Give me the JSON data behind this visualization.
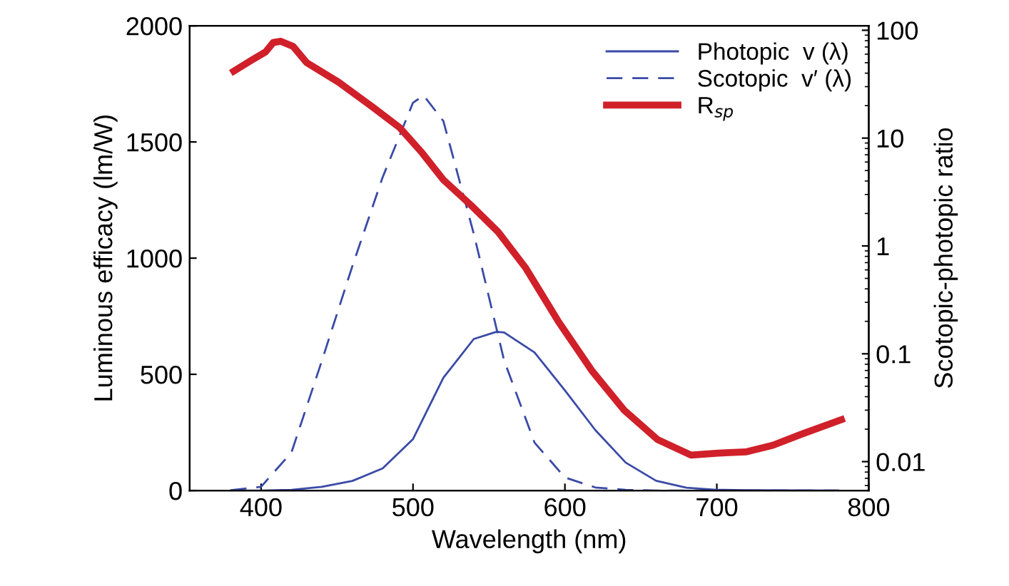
{
  "chart_data": {
    "type": "line",
    "xlabel": "Wavelength (nm)",
    "ylabel": "Luminous efficacy (lm/W)",
    "y2label": "Scotopic-photopic ratio",
    "xlim": [
      353,
      800
    ],
    "xticks": [
      400,
      500,
      600,
      700,
      800
    ],
    "ylim": [
      0,
      2000
    ],
    "yticks": [
      0,
      500,
      1000,
      1500,
      2000
    ],
    "log": "y2",
    "y2lim": [
      0.0054,
      110
    ],
    "y2ticks": [
      0.01,
      0.1,
      1,
      10,
      100
    ],
    "grid": false,
    "legend": "top right",
    "marker": "none",
    "series": [
      {
        "name": "Photopic  v (λ)",
        "color": "#3a4aa6",
        "line_style": "solid",
        "x": [
          380,
          400,
          420,
          440,
          460,
          480,
          500,
          520,
          540,
          555,
          560,
          580,
          600,
          620,
          640,
          660,
          680,
          700,
          720,
          780
        ],
        "values": [
          0,
          0,
          3,
          16,
          41,
          95,
          221,
          485,
          652,
          683,
          680,
          594,
          431,
          260,
          120,
          42,
          12,
          3,
          1,
          0
        ]
      },
      {
        "name": "Scotopic  v′ (λ)",
        "color": "#3a4aa6",
        "line_style": "dashed",
        "x": [
          380,
          400,
          420,
          440,
          460,
          480,
          500,
          507,
          520,
          540,
          560,
          580,
          600,
          620,
          640,
          660,
          700,
          780
        ],
        "values": [
          1,
          16,
          164,
          558,
          964,
          1348,
          1669,
          1700,
          1590,
          1105,
          559,
          206,
          56,
          13,
          3,
          0,
          0,
          0
        ]
      },
      {
        "name": "R$_{sp}$",
        "color": "#d0202a",
        "line_style": "solid",
        "axis": "y2",
        "x": [
          382,
          393,
          403,
          408,
          413,
          421,
          430,
          451,
          473,
          491,
          506,
          520,
          538,
          556,
          574,
          596,
          618,
          639,
          661,
          683,
          701,
          719,
          737,
          755,
          782
        ],
        "values": [
          41.7,
          52,
          63,
          77,
          79,
          71,
          50,
          33,
          19.6,
          12.6,
          7.3,
          4.1,
          2.4,
          1.35,
          0.63,
          0.196,
          0.069,
          0.03,
          0.016,
          0.0115,
          0.012,
          0.0123,
          0.0142,
          0.0178,
          0.0245
        ]
      }
    ]
  }
}
